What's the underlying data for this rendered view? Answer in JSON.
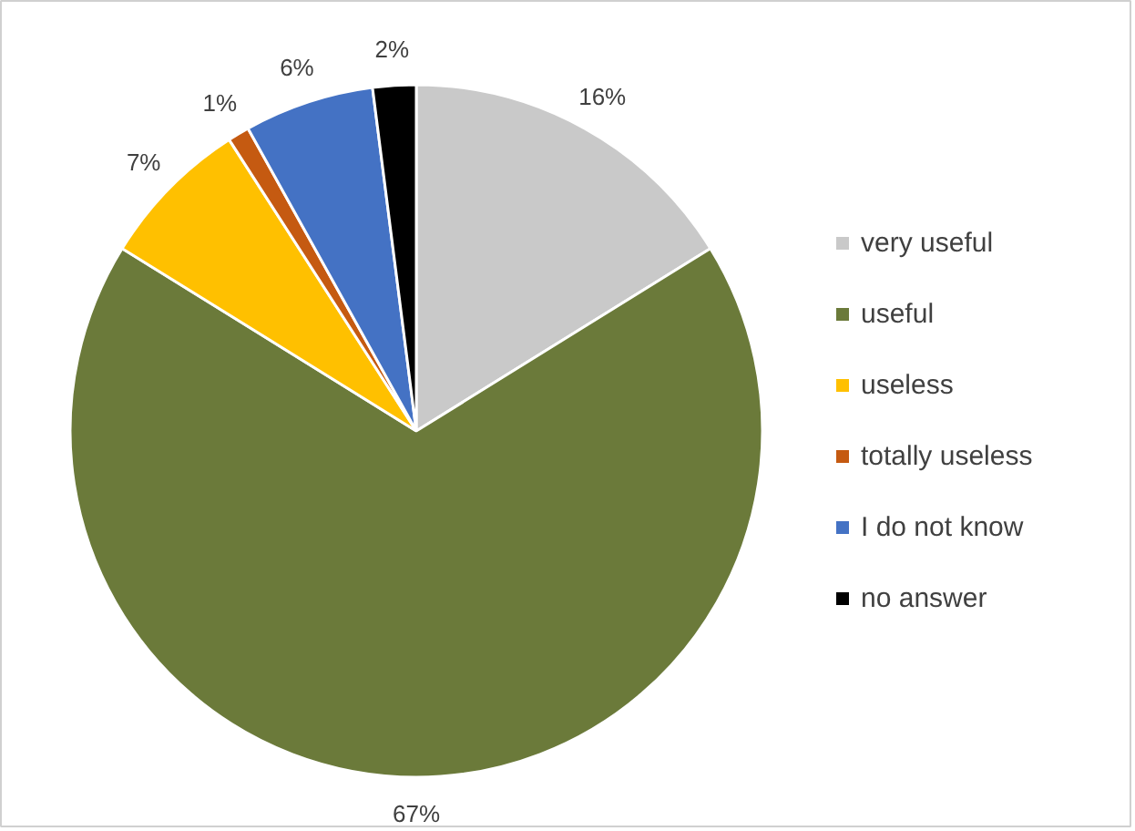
{
  "chart_data": {
    "type": "pie",
    "categories": [
      "very useful",
      "useful",
      "useless",
      "totally useless",
      "I do not know",
      "no answer"
    ],
    "values": [
      16,
      67,
      7,
      1,
      6,
      2
    ],
    "value_labels": [
      "16%",
      "67%",
      "7%",
      "1%",
      "6%",
      "2%"
    ],
    "colors": [
      "#c9c9c9",
      "#6b7a3a",
      "#ffc000",
      "#c55a11",
      "#4472c4",
      "#000000"
    ],
    "legend": "right"
  }
}
